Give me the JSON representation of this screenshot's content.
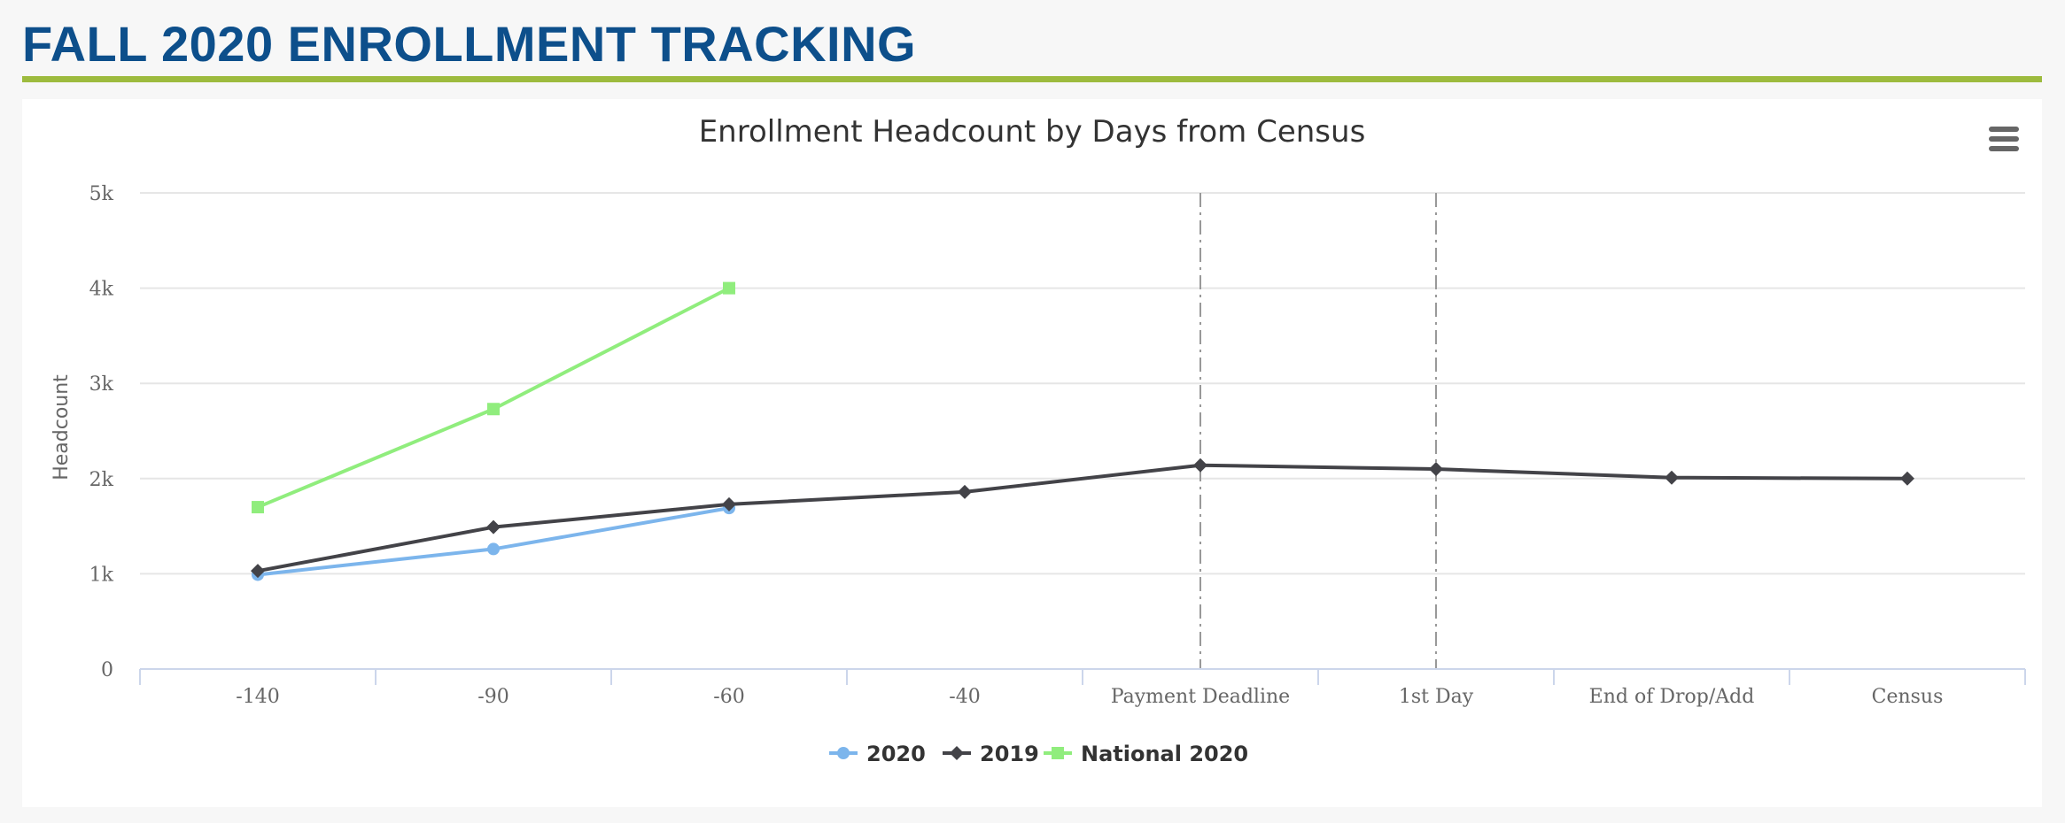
{
  "page": {
    "title": "FALL 2020 ENROLLMENT TRACKING"
  },
  "chart_data": {
    "type": "line",
    "title": "Enrollment Headcount by Days from Census",
    "xlabel": "",
    "ylabel": "Headcount",
    "categories": [
      "-140",
      "-90",
      "-60",
      "-40",
      "Payment Deadline",
      "1st Day",
      "End of Drop/Add",
      "Census"
    ],
    "ylim": [
      0,
      5000
    ],
    "yticks": [
      0,
      1000,
      2000,
      3000,
      4000,
      5000
    ],
    "ytick_labels": [
      "0",
      "1k",
      "2k",
      "3k",
      "4k",
      "5k"
    ],
    "grid": true,
    "legend": "bottom-center",
    "plot_lines": [
      "Payment Deadline",
      "1st Day"
    ],
    "series": [
      {
        "name": "2020",
        "color": "#7cb5ec",
        "marker": "circle",
        "values": [
          990,
          1260,
          1690,
          null,
          null,
          null,
          null,
          null
        ]
      },
      {
        "name": "2019",
        "color": "#434348",
        "marker": "diamond",
        "values": [
          1030,
          1490,
          1730,
          1860,
          2140,
          2100,
          2010,
          2000
        ]
      },
      {
        "name": "National 2020",
        "color": "#90ed7d",
        "marker": "square",
        "values": [
          1700,
          2730,
          4000,
          null,
          null,
          null,
          null,
          null
        ]
      }
    ]
  },
  "colors": {
    "title": "#0d4f8b",
    "rule": "#9dbb3e",
    "gridline": "#e6e6e6",
    "plot_line": "#999999"
  },
  "icons": {
    "menu": "hamburger-menu-icon"
  }
}
